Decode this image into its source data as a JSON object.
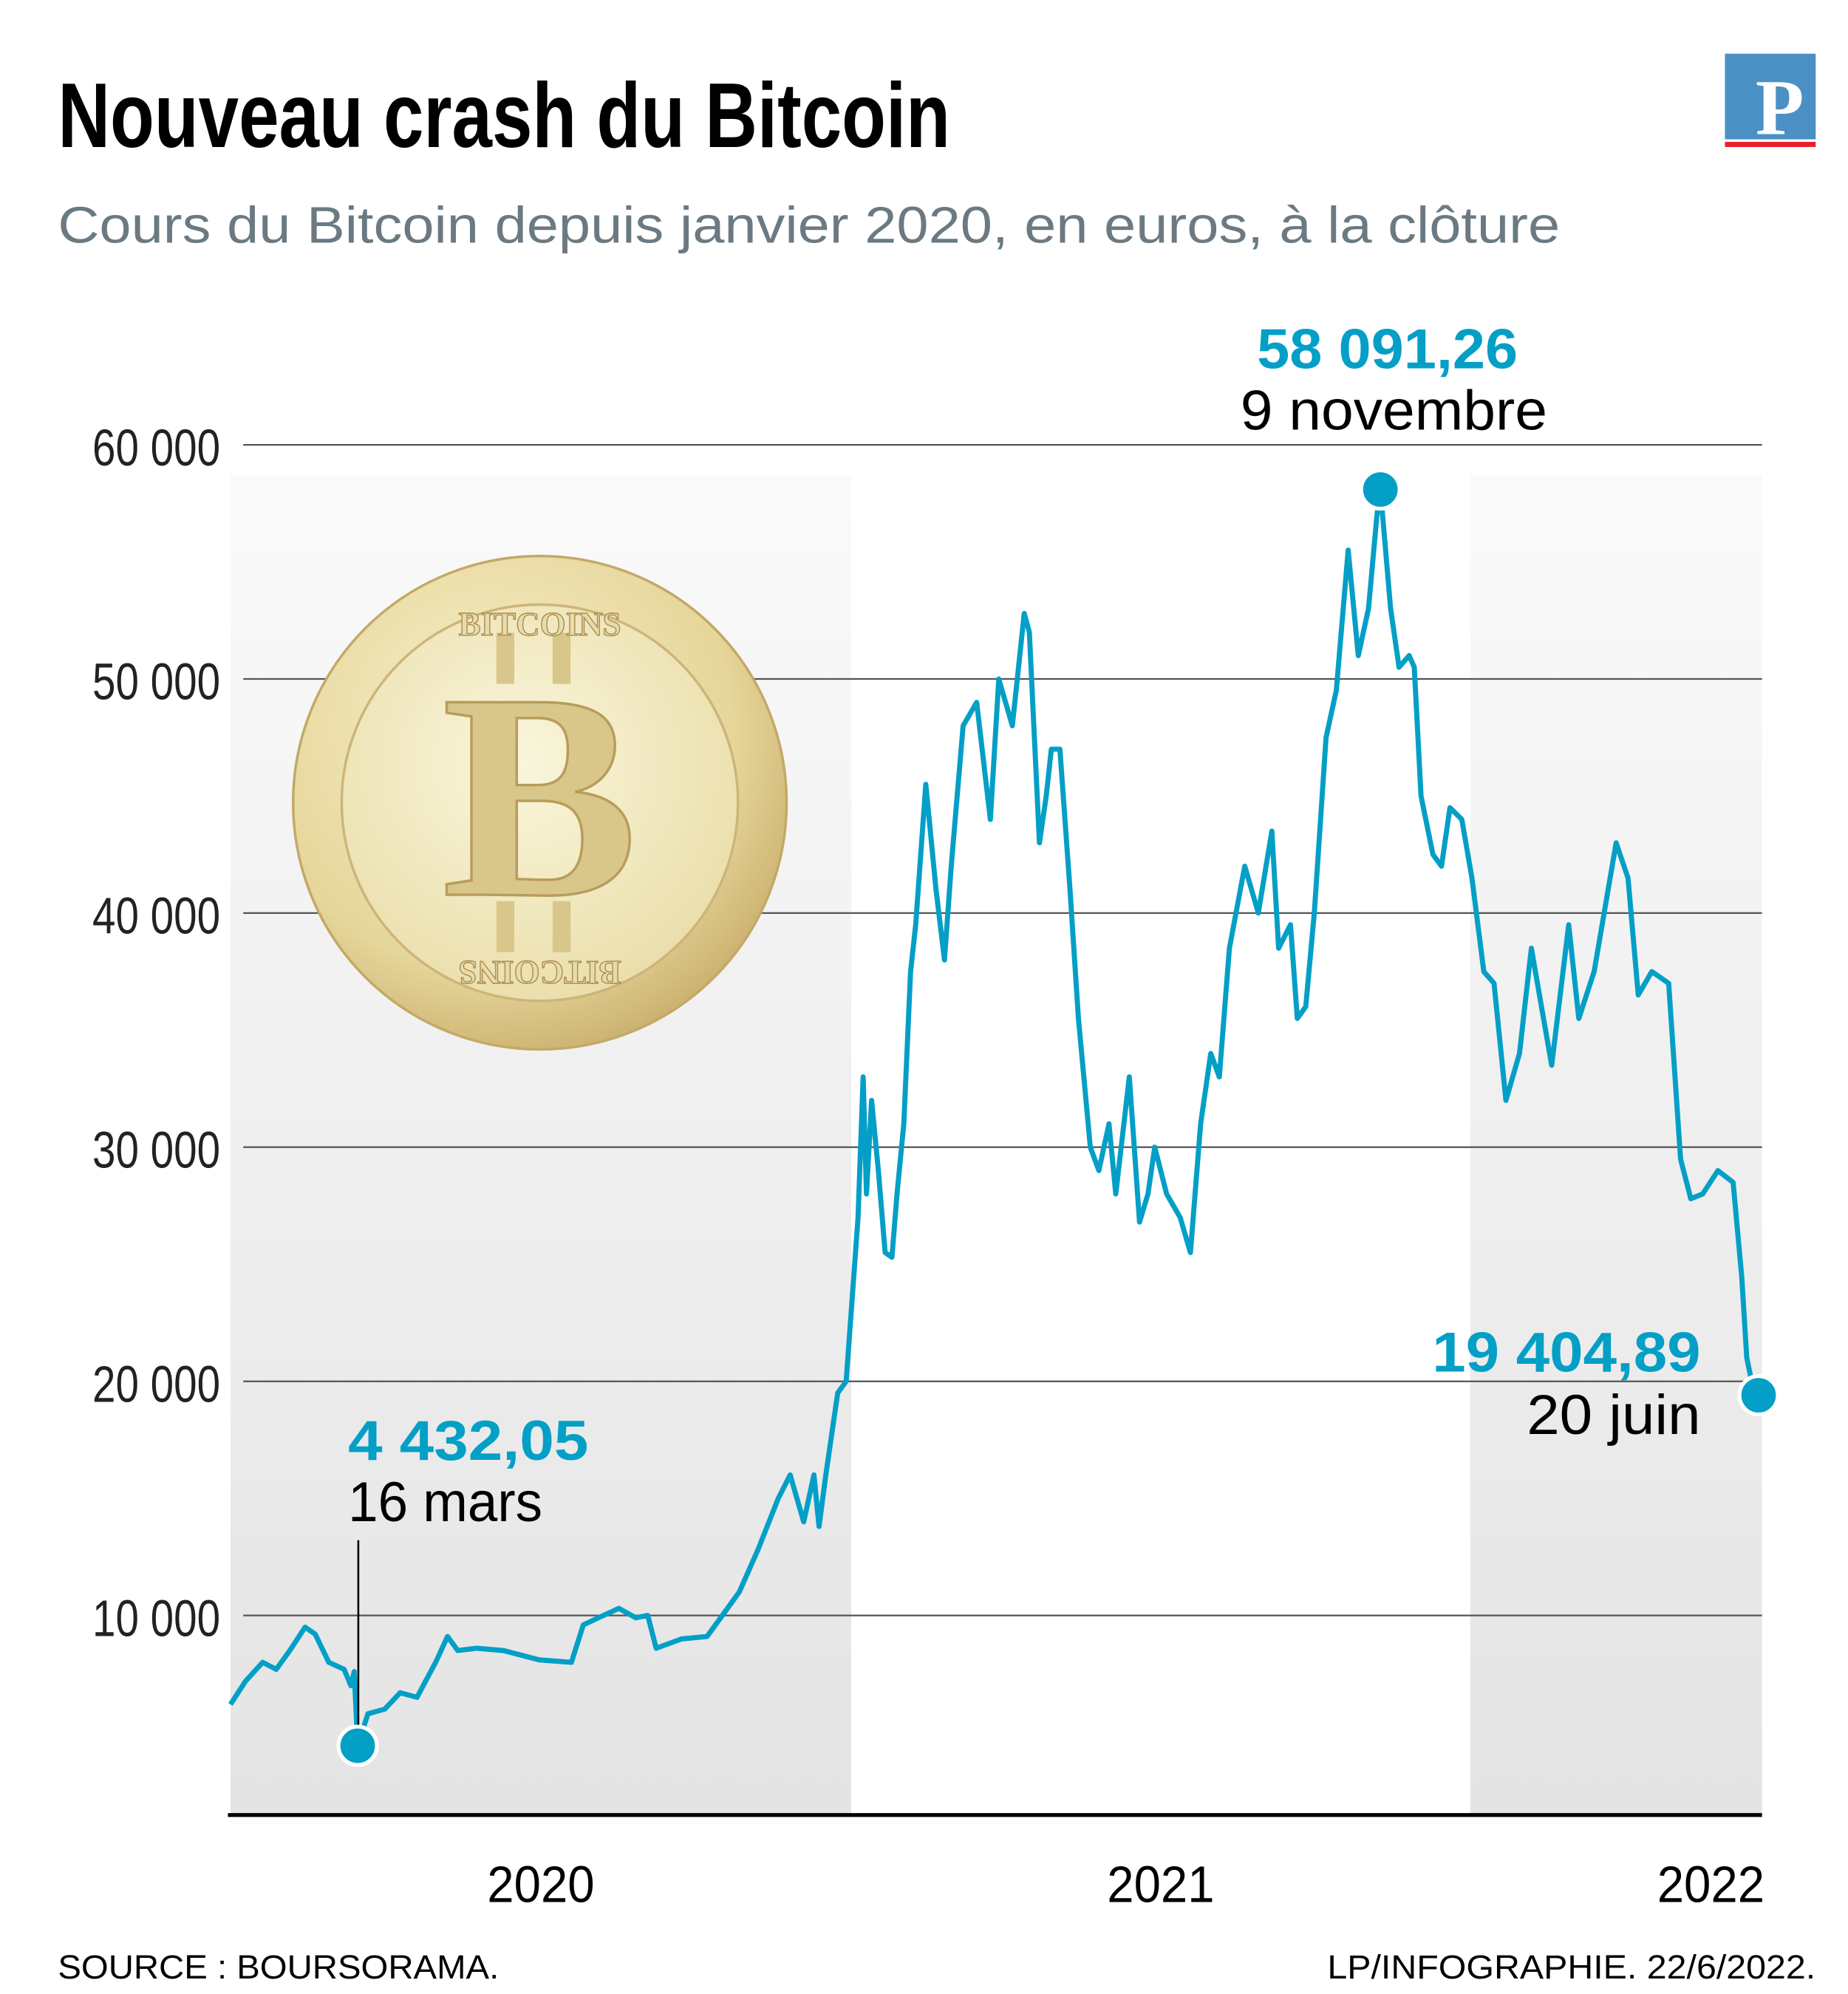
{
  "title": "Nouveau crash du Bitcoin",
  "subtitle": "Cours du Bitcoin depuis janvier 2020, en euros, à la clôture",
  "logo_text": "P",
  "coin_text": {
    "top": "BITCOINS",
    "bottom": "BITCOINS",
    "symbol": "B"
  },
  "source": "SOURCE : BOURSORAMA.",
  "credit": "LP/INFOGRAPHIE. 22/6/2022.",
  "colors": {
    "line": "#049fc6",
    "grid": "#555555",
    "band": "#e6e6e6",
    "title": "#000000",
    "subtitle": "#6b7a82",
    "logo": "#4a90c4",
    "logo_bar": "#e8202a"
  },
  "chart_data": {
    "type": "line",
    "xlabel": "",
    "ylabel": "",
    "ylim": [
      0,
      60000
    ],
    "xlim": [
      "2020-01-01",
      "2022-06-22"
    ],
    "grid": true,
    "yticks": [
      10000,
      20000,
      30000,
      40000,
      50000,
      60000
    ],
    "ytick_labels": [
      "10 000",
      "20 000",
      "30 000",
      "40 000",
      "50 000",
      "60 000"
    ],
    "xtick_labels": [
      "2020",
      "2021",
      "2022"
    ],
    "series": [
      {
        "points": [
          [
            "2020-01-01",
            6200
          ],
          [
            "2020-01-10",
            7200
          ],
          [
            "2020-01-20",
            8000
          ],
          [
            "2020-01-28",
            7700
          ],
          [
            "2020-02-05",
            8500
          ],
          [
            "2020-02-14",
            9500
          ],
          [
            "2020-02-20",
            9200
          ],
          [
            "2020-02-28",
            8000
          ],
          [
            "2020-03-08",
            7700
          ],
          [
            "2020-03-12",
            7000
          ],
          [
            "2020-03-14",
            7600
          ],
          [
            "2020-03-16",
            4432.05
          ],
          [
            "2020-03-22",
            5800
          ],
          [
            "2020-04-01",
            6000
          ],
          [
            "2020-04-10",
            6700
          ],
          [
            "2020-04-20",
            6500
          ],
          [
            "2020-05-01",
            8000
          ],
          [
            "2020-05-08",
            9100
          ],
          [
            "2020-05-14",
            8500
          ],
          [
            "2020-05-25",
            8600
          ],
          [
            "2020-06-10",
            8500
          ],
          [
            "2020-07-01",
            8100
          ],
          [
            "2020-07-20",
            8000
          ],
          [
            "2020-07-27",
            9600
          ],
          [
            "2020-08-08",
            10000
          ],
          [
            "2020-08-17",
            10300
          ],
          [
            "2020-08-27",
            9900
          ],
          [
            "2020-09-03",
            10000
          ],
          [
            "2020-09-08",
            8600
          ],
          [
            "2020-09-23",
            9000
          ],
          [
            "2020-10-08",
            9100
          ],
          [
            "2020-10-15",
            9800
          ],
          [
            "2020-10-27",
            11000
          ],
          [
            "2020-11-07",
            12800
          ],
          [
            "2020-11-19",
            15000
          ],
          [
            "2020-11-26",
            16000
          ],
          [
            "2020-12-04",
            14000
          ],
          [
            "2020-12-10",
            16000
          ],
          [
            "2020-12-13",
            13800
          ],
          [
            "2020-12-17",
            16000
          ],
          [
            "2020-12-24",
            19500
          ],
          [
            "2020-12-29",
            20000
          ],
          [
            "2021-01-01",
            23000
          ],
          [
            "2021-01-05",
            27000
          ],
          [
            "2021-01-08",
            33000
          ],
          [
            "2021-01-10",
            28000
          ],
          [
            "2021-01-13",
            32000
          ],
          [
            "2021-01-17",
            29000
          ],
          [
            "2021-01-21",
            25500
          ],
          [
            "2021-01-25",
            25300
          ],
          [
            "2021-01-28",
            28000
          ],
          [
            "2021-02-01",
            31000
          ],
          [
            "2021-02-05",
            37500
          ],
          [
            "2021-02-08",
            39500
          ],
          [
            "2021-02-14",
            45500
          ],
          [
            "2021-02-20",
            41000
          ],
          [
            "2021-02-25",
            38000
          ],
          [
            "2021-03-01",
            42000
          ],
          [
            "2021-03-08",
            48000
          ],
          [
            "2021-03-16",
            49000
          ],
          [
            "2021-03-24",
            44000
          ],
          [
            "2021-03-29",
            50000
          ],
          [
            "2021-04-06",
            48000
          ],
          [
            "2021-04-13",
            52800
          ],
          [
            "2021-04-16",
            52000
          ],
          [
            "2021-04-22",
            43000
          ],
          [
            "2021-04-26",
            45000
          ],
          [
            "2021-04-29",
            47000
          ],
          [
            "2021-05-04",
            47000
          ],
          [
            "2021-05-10",
            41000
          ],
          [
            "2021-05-15",
            35500
          ],
          [
            "2021-05-22",
            30000
          ],
          [
            "2021-05-27",
            29000
          ],
          [
            "2021-06-02",
            31000
          ],
          [
            "2021-06-06",
            28000
          ],
          [
            "2021-06-14",
            33000
          ],
          [
            "2021-06-20",
            26800
          ],
          [
            "2021-06-25",
            28000
          ],
          [
            "2021-06-29",
            30000
          ],
          [
            "2021-07-06",
            28000
          ],
          [
            "2021-07-14",
            27000
          ],
          [
            "2021-07-20",
            25500
          ],
          [
            "2021-07-26",
            31000
          ],
          [
            "2021-08-01",
            34000
          ],
          [
            "2021-08-06",
            33000
          ],
          [
            "2021-08-12",
            38500
          ],
          [
            "2021-08-21",
            42000
          ],
          [
            "2021-08-29",
            40000
          ],
          [
            "2021-09-06",
            43500
          ],
          [
            "2021-09-10",
            38500
          ],
          [
            "2021-09-17",
            39500
          ],
          [
            "2021-09-21",
            35500
          ],
          [
            "2021-09-26",
            36000
          ],
          [
            "2021-10-01",
            40000
          ],
          [
            "2021-10-08",
            47500
          ],
          [
            "2021-10-14",
            49500
          ],
          [
            "2021-10-21",
            55500
          ],
          [
            "2021-10-27",
            51000
          ],
          [
            "2021-11-02",
            53000
          ],
          [
            "2021-11-07",
            57000
          ],
          [
            "2021-11-09",
            58091.26
          ],
          [
            "2021-11-15",
            53000
          ],
          [
            "2021-11-20",
            50500
          ],
          [
            "2021-11-26",
            51000
          ],
          [
            "2021-11-29",
            50500
          ],
          [
            "2021-12-03",
            45000
          ],
          [
            "2021-12-10",
            42500
          ],
          [
            "2021-12-15",
            42000
          ],
          [
            "2021-12-20",
            44500
          ],
          [
            "2021-12-27",
            44000
          ],
          [
            "2022-01-02",
            41500
          ],
          [
            "2022-01-09",
            37500
          ],
          [
            "2022-01-15",
            37000
          ],
          [
            "2022-01-22",
            32000
          ],
          [
            "2022-01-30",
            34000
          ],
          [
            "2022-02-06",
            38500
          ],
          [
            "2022-02-12",
            36000
          ],
          [
            "2022-02-18",
            33500
          ],
          [
            "2022-02-28",
            39500
          ],
          [
            "2022-03-06",
            35500
          ],
          [
            "2022-03-15",
            37500
          ],
          [
            "2022-03-28",
            43000
          ],
          [
            "2022-04-04",
            41500
          ],
          [
            "2022-04-10",
            36500
          ],
          [
            "2022-04-18",
            37500
          ],
          [
            "2022-04-28",
            37000
          ],
          [
            "2022-05-05",
            29500
          ],
          [
            "2022-05-11",
            27800
          ],
          [
            "2022-05-18",
            28000
          ],
          [
            "2022-05-27",
            29000
          ],
          [
            "2022-06-05",
            28500
          ],
          [
            "2022-06-10",
            24500
          ],
          [
            "2022-06-13",
            21000
          ],
          [
            "2022-06-17",
            19600
          ],
          [
            "2022-06-20",
            19404.89
          ],
          [
            "2022-06-22",
            19700
          ]
        ]
      }
    ],
    "annotations": [
      {
        "value": "4 432,05",
        "label": "16 mars",
        "date": "2020-03-16",
        "y": 4432.05
      },
      {
        "value": "58 091,26",
        "label": "9 novembre",
        "date": "2021-11-09",
        "y": 58091.26
      },
      {
        "value": "19 404,89",
        "label": "20 juin",
        "date": "2022-06-20",
        "y": 19404.89
      }
    ]
  }
}
